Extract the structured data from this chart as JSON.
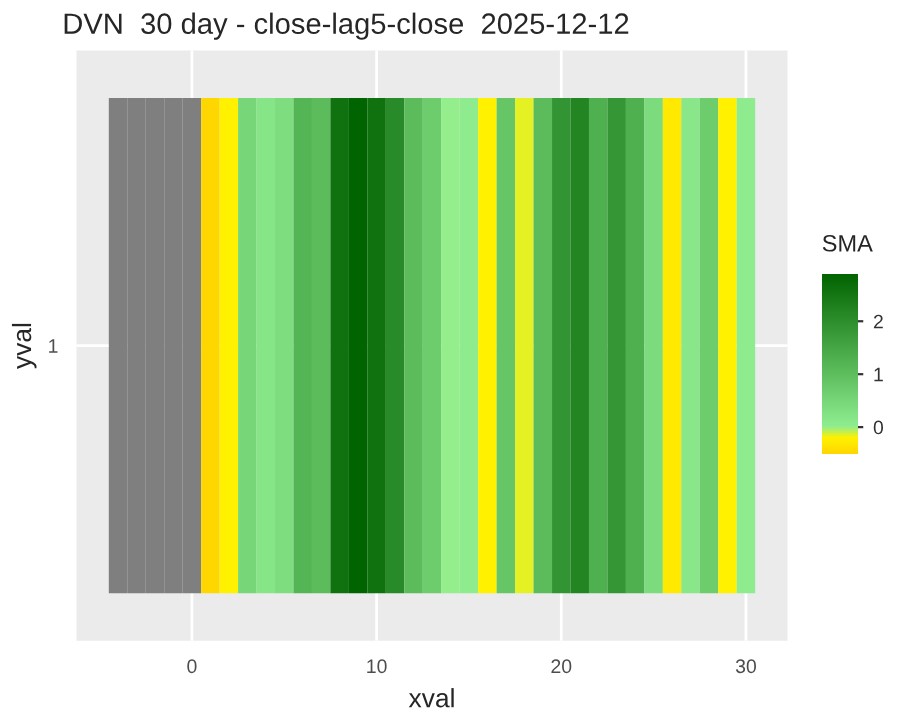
{
  "chart_data": {
    "type": "heatmap",
    "title": "DVN  30 day - close-lag5-close  2025-12-12",
    "xlabel": "xval",
    "ylabel": "yval",
    "clabel": "SMA",
    "x": [
      -4,
      -3,
      -2,
      -1,
      0,
      1,
      2,
      3,
      4,
      5,
      6,
      7,
      8,
      9,
      10,
      11,
      12,
      13,
      14,
      15,
      16,
      17,
      18,
      19,
      20,
      21,
      22,
      23,
      24,
      25,
      26,
      27,
      28,
      29,
      30
    ],
    "y_categories": [
      "1"
    ],
    "cells": [
      [
        null,
        null,
        null,
        null,
        null,
        -0.5,
        -0.2,
        0.5,
        0.2,
        0.35,
        1.2,
        1.05,
        2.6,
        2.9,
        2.6,
        2.1,
        1.05,
        0.7,
        0.0,
        0.05,
        -0.2,
        0.85,
        -0.15,
        1.05,
        1.9,
        2.2,
        1.3,
        1.85,
        1.3,
        0.4,
        -0.3,
        0.15,
        0.7,
        -0.2,
        0.05
      ]
    ],
    "xlim": [
      -6.25,
      32.25
    ],
    "xticks": [
      0,
      10,
      20,
      30
    ],
    "clim": [
      -0.5,
      2.9
    ],
    "cticks": [
      0,
      1,
      2
    ],
    "grid": true
  }
}
